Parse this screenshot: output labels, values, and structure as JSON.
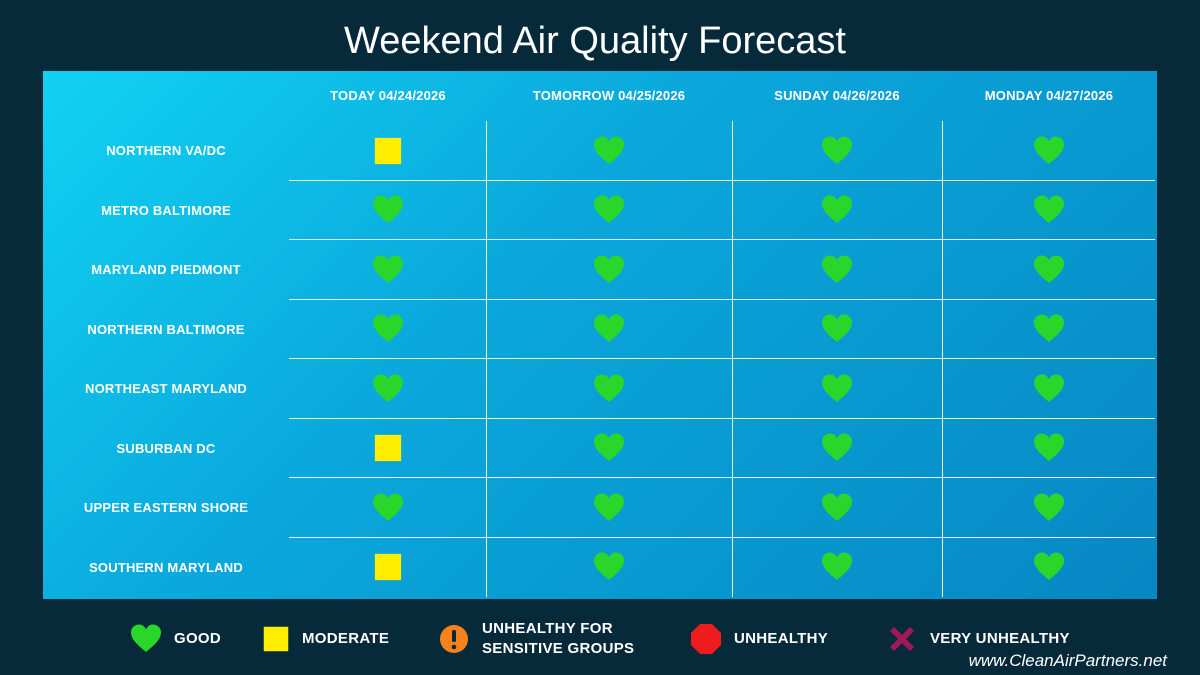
{
  "title": "Weekend Air Quality Forecast",
  "days": [
    "TODAY 04/24/2026",
    "TOMORROW 04/25/2026",
    "SUNDAY 04/26/2026",
    "MONDAY 04/27/2026"
  ],
  "regions": [
    {
      "name": "NORTHERN VA/DC",
      "forecast": [
        "moderate",
        "good",
        "good",
        "good"
      ]
    },
    {
      "name": "METRO BALTIMORE",
      "forecast": [
        "good",
        "good",
        "good",
        "good"
      ]
    },
    {
      "name": "MARYLAND PIEDMONT",
      "forecast": [
        "good",
        "good",
        "good",
        "good"
      ]
    },
    {
      "name": "NORTHERN BALTIMORE",
      "forecast": [
        "good",
        "good",
        "good",
        "good"
      ]
    },
    {
      "name": "NORTHEAST MARYLAND",
      "forecast": [
        "good",
        "good",
        "good",
        "good"
      ]
    },
    {
      "name": "SUBURBAN DC",
      "forecast": [
        "moderate",
        "good",
        "good",
        "good"
      ]
    },
    {
      "name": "UPPER EASTERN SHORE",
      "forecast": [
        "good",
        "good",
        "good",
        "good"
      ]
    },
    {
      "name": "SOUTHERN MARYLAND",
      "forecast": [
        "moderate",
        "good",
        "good",
        "good"
      ]
    }
  ],
  "legend": [
    {
      "key": "good",
      "label": "GOOD",
      "icon": "heart-icon",
      "color": "#2bd62b"
    },
    {
      "key": "moderate",
      "label": "MODERATE",
      "icon": "square-icon",
      "color": "#ffee00"
    },
    {
      "key": "usg",
      "label": "UNHEALTHY FOR SENSITIVE GROUPS",
      "icon": "exclamation-circle-icon",
      "color": "#f7821b"
    },
    {
      "key": "unhealthy",
      "label": "UNHEALTHY",
      "icon": "octagon-icon",
      "color": "#ee1c1c"
    },
    {
      "key": "very_unhealthy",
      "label": "VERY UNHEALTHY",
      "icon": "x-icon",
      "color": "#a0185a"
    }
  ],
  "website": "www.CleanAirPartners.net"
}
